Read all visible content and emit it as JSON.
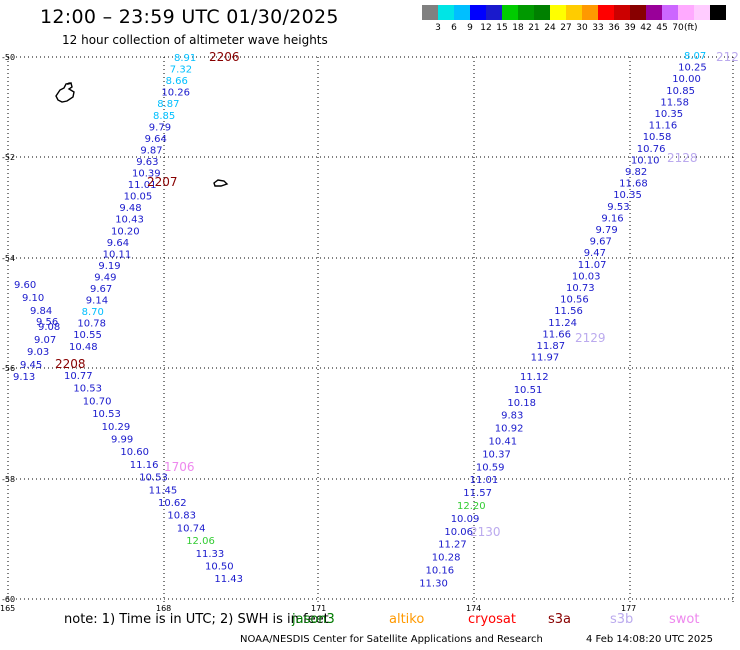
{
  "title": "12:00 – 23:59 UTC 01/30/2025",
  "subtitle": "12 hour collection of altimeter wave heights",
  "colorbar": {
    "colors": [
      "#808080",
      "#00e5e5",
      "#00bfff",
      "#0000ff",
      "#1a1acc",
      "#00cc00",
      "#009900",
      "#008000",
      "#ffff00",
      "#ffcc00",
      "#ff9900",
      "#ff0000",
      "#cc0000",
      "#880000",
      "#990099",
      "#cc66ff",
      "#ffaaff",
      "#ffccff",
      "#000000"
    ],
    "labels": [
      "3",
      "6",
      "9",
      "12",
      "15",
      "18",
      "21",
      "24",
      "27",
      "30",
      "33",
      "36",
      "39",
      "42",
      "45",
      "70"
    ],
    "unit": "(ft)"
  },
  "axes": {
    "lon_ticks": [
      "165",
      "168",
      "171",
      "174",
      "177"
    ],
    "lat_ticks": [
      "-50",
      "-52",
      "-54",
      "-56",
      "-58",
      "-60"
    ]
  },
  "pass_labels": [
    {
      "text": "2206",
      "color": "#880000"
    },
    {
      "text": "2207",
      "color": "#880000"
    },
    {
      "text": "2208",
      "color": "#880000"
    },
    {
      "text": "1706",
      "color": "#ee88ee"
    },
    {
      "text": "2128",
      "color": "#bbaaee"
    },
    {
      "text": "2129",
      "color": "#bbaaee"
    },
    {
      "text": "2130",
      "color": "#bbaaee"
    },
    {
      "text": "212",
      "color": "#bbaaee"
    }
  ],
  "track_left": [
    [
      "8.91",
      "#00bfff"
    ],
    [
      "7.32",
      "#00bfff"
    ],
    [
      "8.66",
      "#00bfff"
    ],
    [
      "10.26",
      "#1a1acc"
    ],
    [
      "8.87",
      "#00bfff"
    ],
    [
      "8.85",
      "#00bfff"
    ],
    [
      "9.79",
      "#1a1acc"
    ],
    [
      "9.64",
      "#1a1acc"
    ],
    [
      "9.87",
      "#1a1acc"
    ],
    [
      "9.63",
      "#1a1acc"
    ],
    [
      "10.39",
      "#1a1acc"
    ],
    [
      "11.01",
      "#1a1acc"
    ],
    [
      "10.05",
      "#1a1acc"
    ],
    [
      "9.48",
      "#1a1acc"
    ],
    [
      "10.43",
      "#1a1acc"
    ],
    [
      "10.20",
      "#1a1acc"
    ],
    [
      "9.64",
      "#1a1acc"
    ],
    [
      "10.11",
      "#1a1acc"
    ],
    [
      "9.19",
      "#1a1acc"
    ],
    [
      "9.49",
      "#1a1acc"
    ],
    [
      "9.67",
      "#1a1acc"
    ],
    [
      "9.14",
      "#1a1acc"
    ],
    [
      "8.70",
      "#00bfff"
    ],
    [
      "10.78",
      "#1a1acc"
    ],
    [
      "10.55",
      "#1a1acc"
    ],
    [
      "10.48",
      "#1a1acc"
    ]
  ],
  "track_left_extra": [
    [
      "9.60",
      "#1a1acc"
    ],
    [
      "9.10",
      "#1a1acc"
    ],
    [
      "9.84",
      "#1a1acc"
    ],
    [
      "9.56",
      "#1a1acc"
    ],
    [
      "9.08",
      "#1a1acc"
    ],
    [
      "9.07",
      "#1a1acc"
    ],
    [
      "9.03",
      "#1a1acc"
    ],
    [
      "9.45",
      "#1a1acc"
    ],
    [
      "9.13",
      "#1a1acc"
    ]
  ],
  "track_left_lower": [
    [
      "10.77",
      "#1a1acc"
    ],
    [
      "10.53",
      "#1a1acc"
    ],
    [
      "10.70",
      "#1a1acc"
    ],
    [
      "10.53",
      "#1a1acc"
    ],
    [
      "10.29",
      "#1a1acc"
    ],
    [
      "9.99",
      "#1a1acc"
    ],
    [
      "10.60",
      "#1a1acc"
    ],
    [
      "11.16",
      "#1a1acc"
    ],
    [
      "10.53",
      "#1a1acc"
    ],
    [
      "11.45",
      "#1a1acc"
    ],
    [
      "10.62",
      "#1a1acc"
    ],
    [
      "10.83",
      "#1a1acc"
    ],
    [
      "10.74",
      "#1a1acc"
    ],
    [
      "12.06",
      "#33cc33"
    ],
    [
      "11.33",
      "#1a1acc"
    ],
    [
      "10.50",
      "#1a1acc"
    ],
    [
      "11.43",
      "#1a1acc"
    ]
  ],
  "track_right_top": [
    [
      "8.07",
      "#00bfff"
    ],
    [
      "10.25",
      "#1a1acc"
    ],
    [
      "10.00",
      "#1a1acc"
    ],
    [
      "10.85",
      "#1a1acc"
    ],
    [
      "11.58",
      "#1a1acc"
    ],
    [
      "10.35",
      "#1a1acc"
    ],
    [
      "11.16",
      "#1a1acc"
    ],
    [
      "10.58",
      "#1a1acc"
    ],
    [
      "10.76",
      "#1a1acc"
    ],
    [
      "10.10",
      "#1a1acc"
    ],
    [
      "9.82",
      "#1a1acc"
    ],
    [
      "11.68",
      "#1a1acc"
    ],
    [
      "10.35",
      "#1a1acc"
    ],
    [
      "9.53",
      "#1a1acc"
    ],
    [
      "9.16",
      "#1a1acc"
    ],
    [
      "9.79",
      "#1a1acc"
    ],
    [
      "9.67",
      "#1a1acc"
    ],
    [
      "9.47",
      "#1a1acc"
    ],
    [
      "11.07",
      "#1a1acc"
    ],
    [
      "10.03",
      "#1a1acc"
    ],
    [
      "10.73",
      "#1a1acc"
    ],
    [
      "10.56",
      "#1a1acc"
    ],
    [
      "11.56",
      "#1a1acc"
    ],
    [
      "11.24",
      "#1a1acc"
    ],
    [
      "11.66",
      "#1a1acc"
    ],
    [
      "11.87",
      "#1a1acc"
    ],
    [
      "11.97",
      "#1a1acc"
    ]
  ],
  "track_right_bottom": [
    [
      "11.12",
      "#1a1acc"
    ],
    [
      "10.51",
      "#1a1acc"
    ],
    [
      "10.18",
      "#1a1acc"
    ],
    [
      "9.83",
      "#1a1acc"
    ],
    [
      "10.92",
      "#1a1acc"
    ],
    [
      "10.41",
      "#1a1acc"
    ],
    [
      "10.37",
      "#1a1acc"
    ],
    [
      "10.59",
      "#1a1acc"
    ],
    [
      "11.01",
      "#1a1acc"
    ],
    [
      "11.57",
      "#1a1acc"
    ],
    [
      "12.20",
      "#33cc33"
    ],
    [
      "10.09",
      "#1a1acc"
    ],
    [
      "10.06",
      "#1a1acc"
    ],
    [
      "11.27",
      "#1a1acc"
    ],
    [
      "10.28",
      "#1a1acc"
    ],
    [
      "10.16",
      "#1a1acc"
    ],
    [
      "11.30",
      "#1a1acc"
    ]
  ],
  "note": "note:  1) Time is in UTC; 2) SWH is in feet",
  "note_overlay": "jason3",
  "legend": [
    {
      "text": "altiko",
      "color": "#ff9900"
    },
    {
      "text": "cryosat",
      "color": "#ff0000"
    },
    {
      "text": "s3a",
      "color": "#880000"
    },
    {
      "text": "s3b",
      "color": "#bbaaee"
    },
    {
      "text": "swot",
      "color": "#ee88ee"
    }
  ],
  "credit": "NOAA/NESDIS Center for Satellite Applications and Research",
  "timestamp": "4 Feb 14:08:20 UTC 2025"
}
